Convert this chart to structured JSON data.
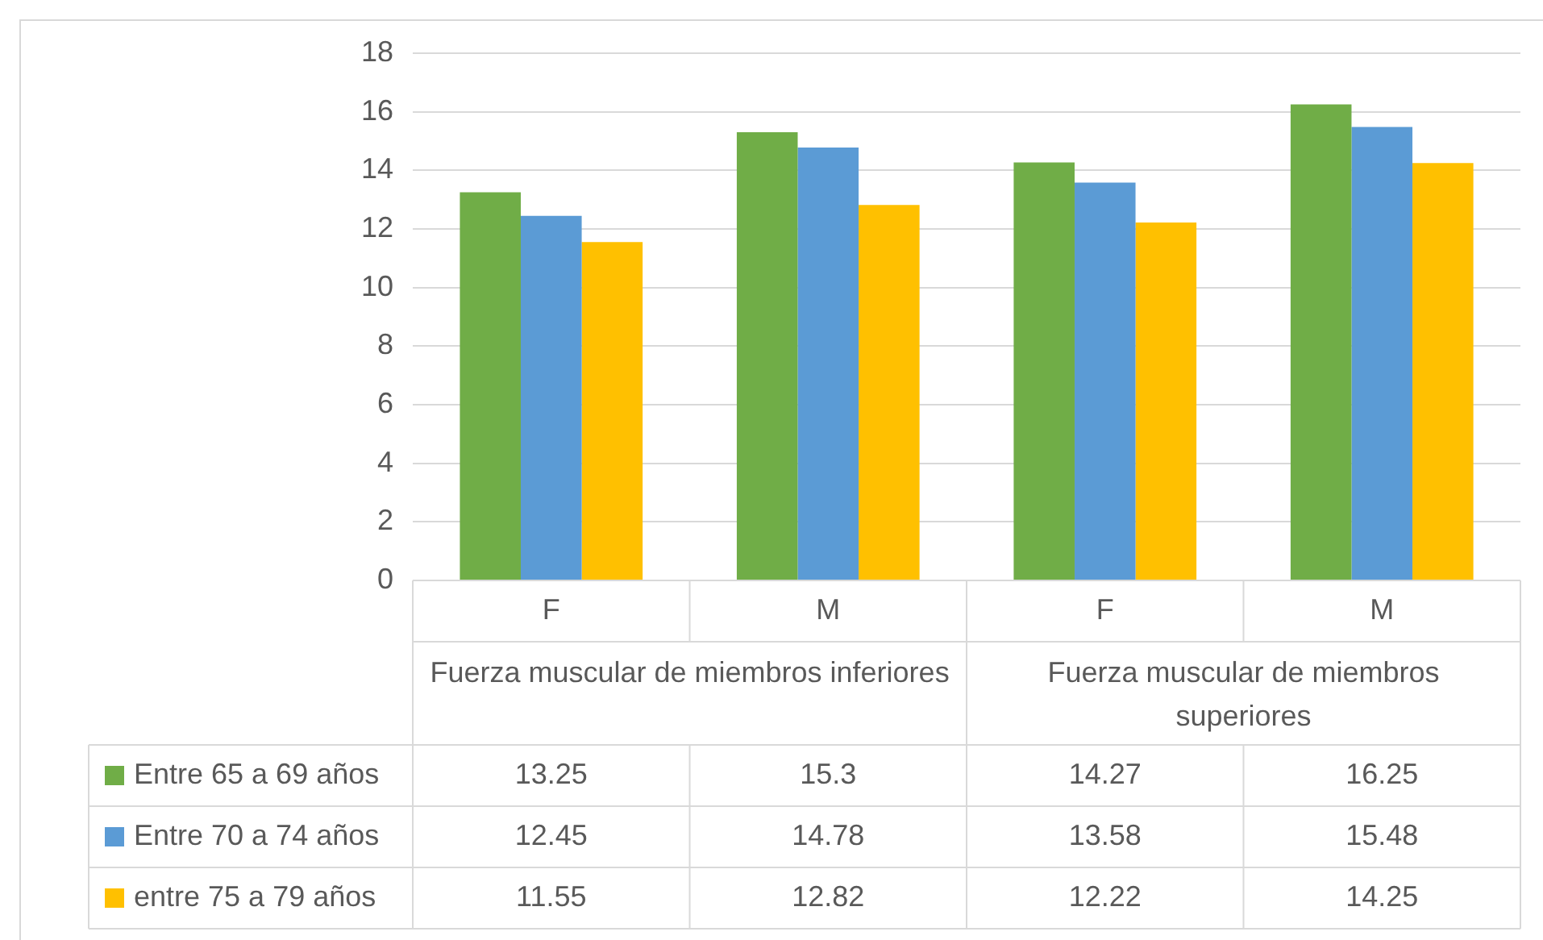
{
  "chart_data": {
    "type": "bar",
    "categories": [
      "F",
      "M",
      "F",
      "M"
    ],
    "series": [
      {
        "name": "Entre 65 a 69 años",
        "color": "#70ad47",
        "values": [
          13.25,
          15.3,
          14.27,
          16.25
        ]
      },
      {
        "name": "Entre 70 a 74 años",
        "color": "#5b9bd5",
        "values": [
          12.45,
          14.78,
          13.58,
          15.48
        ]
      },
      {
        "name": "entre 75 a 79 años",
        "color": "#ffc000",
        "values": [
          11.55,
          12.82,
          12.22,
          14.25
        ]
      }
    ],
    "annotations": [
      "Fuerza muscular de miembros inferiores",
      "Fuerza muscular de miembros superiores"
    ],
    "ylim": [
      0,
      18
    ],
    "yticks": [
      0,
      2,
      4,
      6,
      8,
      10,
      12,
      14,
      16,
      18
    ],
    "grid": "y",
    "legend": "bottom",
    "data_labels": true
  }
}
